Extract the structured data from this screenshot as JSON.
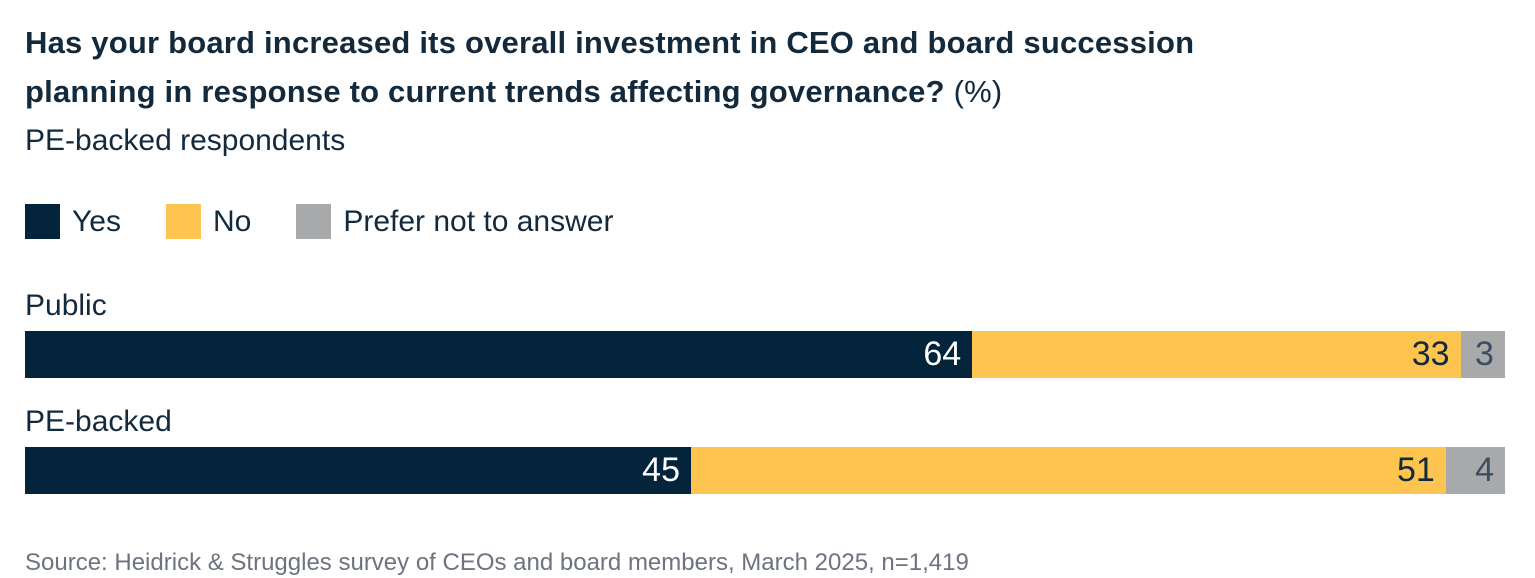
{
  "chart_data": {
    "type": "bar",
    "stacked": true,
    "orientation": "horizontal",
    "title": "Has your board increased its overall investment in CEO and board succession planning in response to current trends affecting governance?",
    "title_suffix": "(%)",
    "title_lines": {
      "line1": "Has your board increased its overall investment in CEO and board succession",
      "line2": "planning in response to current trends affecting governance?"
    },
    "subtitle": "PE-backed respondents",
    "categories": [
      "Public",
      "PE-backed"
    ],
    "series": [
      {
        "name": "Yes",
        "color": "#03243A",
        "values": [
          64,
          45
        ]
      },
      {
        "name": "No",
        "color": "#FDC44F",
        "values": [
          33,
          51
        ]
      },
      {
        "name": "Prefer not to answer",
        "color": "#A8A9AB",
        "values": [
          3,
          4
        ]
      }
    ],
    "xlim": [
      0,
      100
    ],
    "legend_position": "top-left",
    "grid": false,
    "value_labels": "inside-end",
    "source": "Source: Heidrick & Struggles survey of CEOs and board members, March 2025, n=1,419"
  },
  "colors": {
    "yes": "#03243A",
    "no": "#FDC44F",
    "prefer_not_to_answer": "#A8A9AB",
    "text": "#13293C",
    "source_text": "#6E7380",
    "background": "#FFFFFF"
  }
}
